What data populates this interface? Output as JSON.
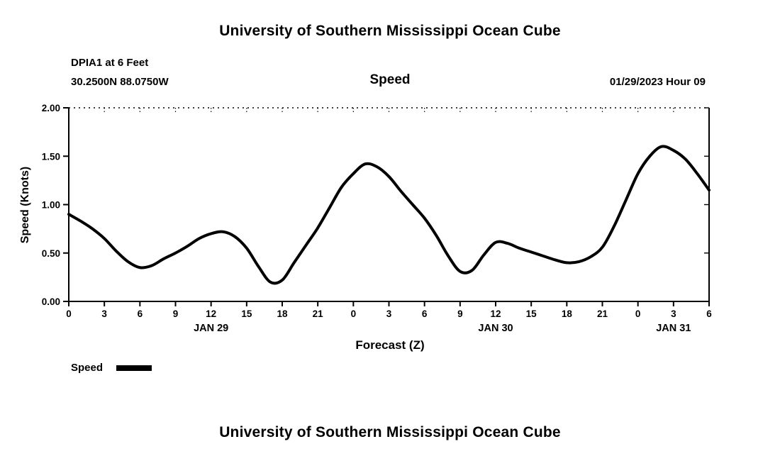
{
  "header": {
    "title": "University of Southern Mississippi Ocean Cube",
    "station": "DPIA1 at 6 Feet",
    "coords": "30.2500N  88.0750W",
    "plot_title": "Speed",
    "datetime": "01/29/2023 Hour 09"
  },
  "footer": {
    "title": "University of Southern Mississippi Ocean Cube"
  },
  "legend": {
    "label": "Speed"
  },
  "chart_data": {
    "type": "line",
    "title": "Speed",
    "xlabel": "Forecast (Z)",
    "ylabel": "Speed (Knots)",
    "ylim": [
      0.0,
      2.0
    ],
    "yticks": [
      0.0,
      0.5,
      1.0,
      1.5,
      2.0
    ],
    "grid": false,
    "legend_position": "bottom-left",
    "line_color": "#000000",
    "line_width": 4,
    "x_hours": [
      0,
      1,
      2,
      3,
      4,
      5,
      6,
      7,
      8,
      9,
      10,
      11,
      12,
      13,
      14,
      15,
      16,
      17,
      18,
      19,
      20,
      21,
      22,
      23,
      24,
      25,
      26,
      27,
      28,
      29,
      30,
      31,
      32,
      33,
      34,
      35,
      36,
      37,
      38,
      39,
      40,
      41,
      42,
      43,
      44,
      45,
      46,
      47,
      48,
      49,
      50,
      51,
      52,
      53,
      54
    ],
    "series": [
      {
        "name": "Speed",
        "values": [
          0.9,
          0.83,
          0.75,
          0.65,
          0.52,
          0.41,
          0.35,
          0.37,
          0.44,
          0.5,
          0.57,
          0.65,
          0.7,
          0.72,
          0.67,
          0.55,
          0.36,
          0.2,
          0.22,
          0.4,
          0.58,
          0.76,
          0.97,
          1.18,
          1.32,
          1.42,
          1.39,
          1.29,
          1.14,
          1.0,
          0.86,
          0.68,
          0.47,
          0.31,
          0.32,
          0.48,
          0.61,
          0.6,
          0.55,
          0.51,
          0.47,
          0.43,
          0.4,
          0.41,
          0.46,
          0.56,
          0.78,
          1.05,
          1.32,
          1.5,
          1.6,
          1.56,
          1.47,
          1.32,
          1.15
        ]
      }
    ],
    "xticks": [
      {
        "hour": 0,
        "label": "0"
      },
      {
        "hour": 3,
        "label": "3"
      },
      {
        "hour": 6,
        "label": "6"
      },
      {
        "hour": 9,
        "label": "9"
      },
      {
        "hour": 12,
        "label": "12"
      },
      {
        "hour": 15,
        "label": "15"
      },
      {
        "hour": 18,
        "label": "18"
      },
      {
        "hour": 21,
        "label": "21"
      },
      {
        "hour": 24,
        "label": "0"
      },
      {
        "hour": 27,
        "label": "3"
      },
      {
        "hour": 30,
        "label": "6"
      },
      {
        "hour": 33,
        "label": "9"
      },
      {
        "hour": 36,
        "label": "12"
      },
      {
        "hour": 39,
        "label": "15"
      },
      {
        "hour": 42,
        "label": "18"
      },
      {
        "hour": 45,
        "label": "21"
      },
      {
        "hour": 48,
        "label": "0"
      },
      {
        "hour": 51,
        "label": "3"
      },
      {
        "hour": 54,
        "label": "6"
      }
    ],
    "date_labels": [
      {
        "hour": 12,
        "label": "JAN 29"
      },
      {
        "hour": 36,
        "label": "JAN 30"
      },
      {
        "hour": 51,
        "label": "JAN 31"
      }
    ]
  }
}
